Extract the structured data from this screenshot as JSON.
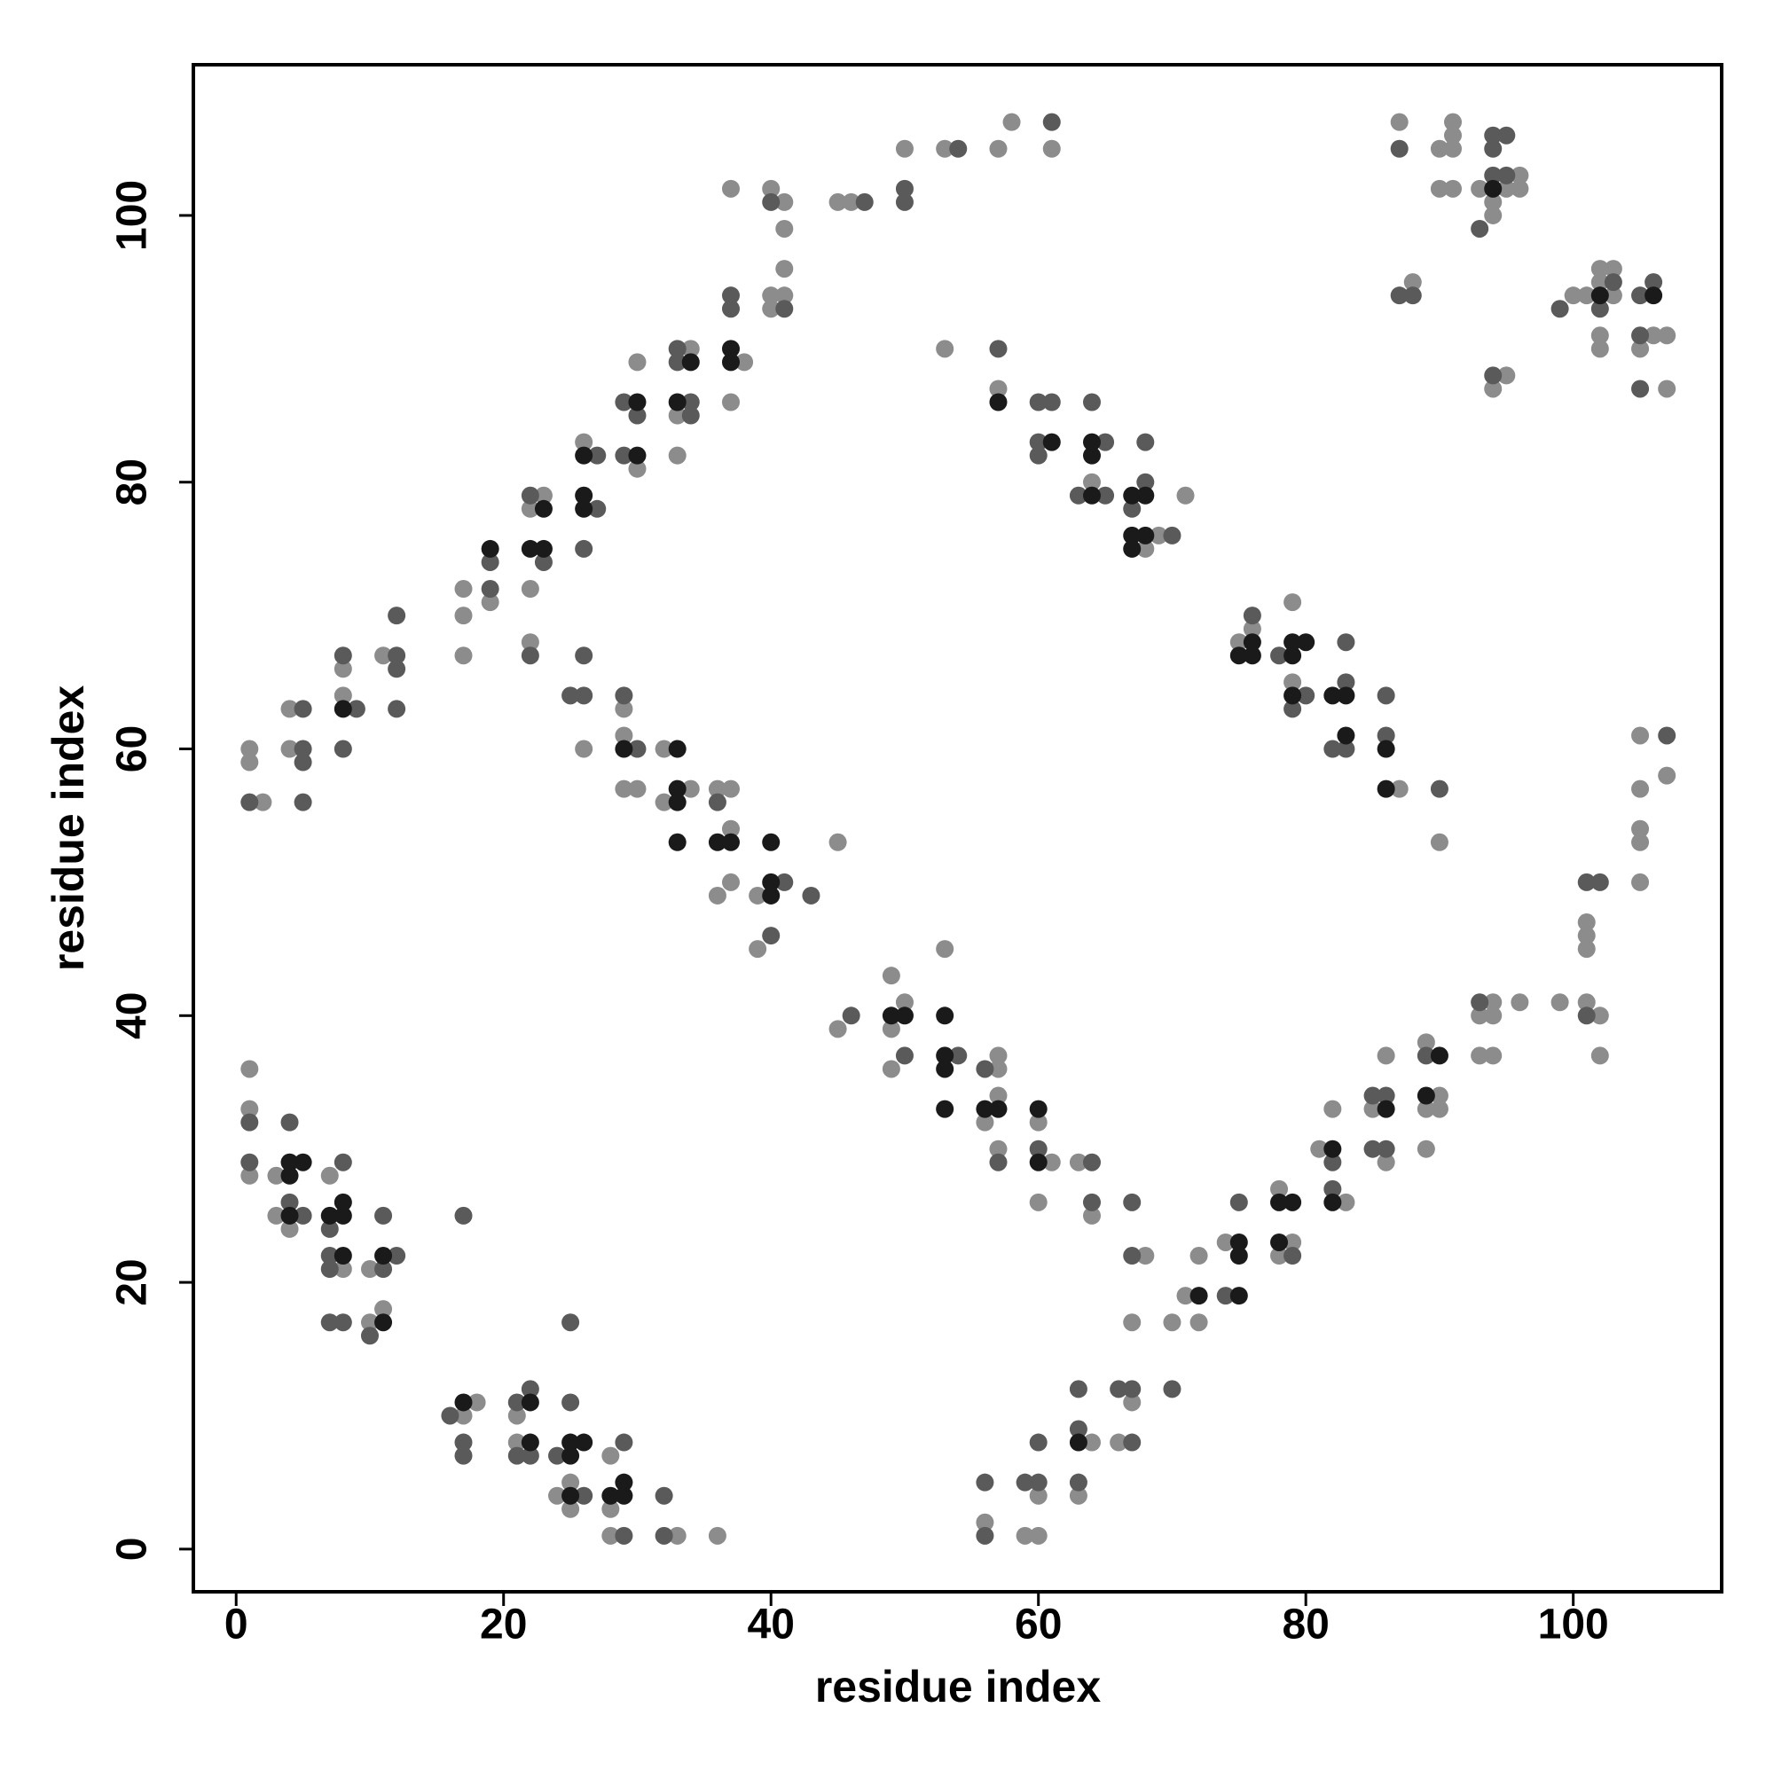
{
  "chart_data": {
    "type": "scatter",
    "xlabel": "residue index",
    "ylabel": "residue index",
    "xlim": [
      -3.2,
      111.1
    ],
    "ylim": [
      -3.2,
      111.3
    ],
    "xticks": [
      0,
      20,
      40,
      60,
      80,
      100
    ],
    "yticks": [
      0,
      20,
      40,
      60,
      80,
      100
    ],
    "grid": false,
    "series": [
      {
        "color": "#8c8c8c",
        "x": [
          1,
          1,
          1,
          3,
          3,
          4,
          7,
          8,
          10,
          10,
          11,
          17,
          18,
          21,
          21,
          25,
          24,
          25,
          28,
          28,
          28,
          33,
          36,
          1,
          1,
          2,
          4,
          4,
          8,
          8,
          11,
          17,
          17,
          17,
          19,
          23,
          22,
          22,
          22,
          26,
          26,
          30,
          30,
          34,
          33,
          33,
          38,
          37,
          37,
          40,
          41,
          41,
          41,
          40,
          41,
          40,
          45,
          46,
          50,
          53,
          57,
          58,
          61,
          53,
          57,
          29,
          29,
          29,
          30,
          32,
          34,
          32,
          36,
          37,
          37,
          37,
          36,
          39,
          39,
          45,
          45,
          49,
          50,
          49,
          49,
          53,
          57,
          57,
          57,
          56,
          57,
          60,
          61,
          60,
          63,
          64,
          68,
          67,
          70,
          71,
          72,
          72,
          74,
          78,
          79,
          78,
          82,
          81,
          83,
          85,
          86,
          86,
          89,
          90,
          89,
          90,
          89,
          94,
          93,
          94,
          93,
          94,
          96,
          99,
          101,
          102,
          102,
          101,
          101,
          101,
          105,
          105,
          105,
          105,
          105,
          107,
          56,
          59,
          60,
          60,
          64,
          63,
          67,
          66,
          64,
          68,
          69,
          71,
          75,
          76,
          79,
          79,
          87,
          90,
          87,
          91,
          91,
          90,
          91,
          90,
          91,
          93,
          96,
          95,
          96,
          94,
          94,
          88,
          95,
          94,
          100,
          101,
          102,
          103,
          102,
          103,
          102,
          102,
          106,
          107,
          105,
          107
        ],
        "values": [
          36,
          33,
          28,
          28,
          25,
          24,
          28,
          21,
          21,
          17,
          18,
          10,
          11,
          10,
          8,
          5,
          4,
          3,
          7,
          3,
          1,
          1,
          1,
          60,
          59,
          56,
          63,
          60,
          66,
          64,
          67,
          72,
          70,
          67,
          71,
          79,
          78,
          72,
          68,
          83,
          60,
          81,
          89,
          90,
          85,
          82,
          89,
          86,
          102,
          102,
          101,
          99,
          96,
          94,
          94,
          93,
          101,
          101,
          105,
          105,
          105,
          107,
          105,
          90,
          87,
          63,
          61,
          57,
          57,
          60,
          57,
          56,
          57,
          57,
          54,
          50,
          49,
          49,
          45,
          53,
          39,
          43,
          41,
          39,
          36,
          45,
          37,
          36,
          34,
          32,
          30,
          32,
          29,
          26,
          29,
          25,
          22,
          17,
          17,
          19,
          22,
          17,
          23,
          27,
          23,
          22,
          33,
          30,
          26,
          33,
          37,
          29,
          38,
          34,
          33,
          33,
          30,
          41,
          40,
          40,
          37,
          37,
          41,
          41,
          41,
          40,
          37,
          47,
          46,
          45,
          57,
          54,
          53,
          50,
          61,
          58,
          2,
          1,
          1,
          4,
          8,
          4,
          11,
          8,
          80,
          75,
          76,
          79,
          68,
          69,
          71,
          65,
          57,
          53,
          107,
          107,
          106,
          105,
          105,
          102,
          102,
          102,
          103,
          102,
          102,
          101,
          100,
          95,
          88,
          87,
          94,
          94,
          96,
          96,
          95,
          94,
          91,
          90,
          91,
          91,
          90,
          87
        ]
      },
      {
        "color": "#5a5a5a",
        "x": [
          1,
          1,
          4,
          4,
          5,
          8,
          7,
          7,
          7,
          11,
          12,
          11,
          7,
          8,
          10,
          17,
          16,
          17,
          17,
          21,
          22,
          21,
          22,
          24,
          25,
          25,
          26,
          29,
          29,
          32,
          32,
          1,
          5,
          5,
          5,
          5,
          8,
          9,
          8,
          12,
          12,
          12,
          12,
          19,
          19,
          22,
          23,
          22,
          27,
          27,
          26,
          26,
          25,
          26,
          29,
          30,
          29,
          33,
          33,
          34,
          34,
          37,
          37,
          40,
          41,
          47,
          50,
          50,
          54,
          61,
          57,
          29,
          30,
          36,
          41,
          40,
          43,
          46,
          50,
          54,
          56,
          57,
          60,
          64,
          64,
          67,
          67,
          75,
          74,
          79,
          82,
          82,
          85,
          86,
          85,
          86,
          89,
          93,
          101,
          101,
          102,
          107,
          56,
          56,
          59,
          60,
          60,
          63,
          63,
          63,
          66,
          67,
          67,
          70,
          60,
          61,
          60,
          60,
          63,
          65,
          65,
          64,
          67,
          68,
          68,
          70,
          76,
          78,
          80,
          79,
          83,
          83,
          82,
          83,
          86,
          86,
          90,
          87,
          94,
          95,
          94,
          94,
          95,
          93,
          87,
          88,
          94,
          99,
          103,
          102,
          105,
          106,
          105,
          105
        ],
        "values": [
          32,
          29,
          32,
          26,
          25,
          29,
          24,
          22,
          21,
          21,
          22,
          25,
          17,
          17,
          16,
          25,
          10,
          8,
          7,
          11,
          12,
          7,
          7,
          7,
          11,
          17,
          4,
          8,
          1,
          4,
          1,
          56,
          63,
          60,
          59,
          56,
          67,
          63,
          60,
          67,
          66,
          70,
          63,
          74,
          72,
          79,
          74,
          67,
          82,
          78,
          75,
          67,
          64,
          64,
          86,
          85,
          82,
          90,
          89,
          86,
          85,
          94,
          93,
          101,
          93,
          101,
          102,
          101,
          105,
          107,
          90,
          64,
          60,
          56,
          50,
          46,
          49,
          40,
          37,
          37,
          36,
          29,
          30,
          29,
          26,
          26,
          22,
          26,
          19,
          22,
          29,
          27,
          34,
          34,
          30,
          30,
          37,
          41,
          40,
          50,
          50,
          61,
          5,
          1,
          5,
          5,
          8,
          12,
          9,
          5,
          12,
          12,
          8,
          12,
          86,
          86,
          83,
          82,
          79,
          79,
          83,
          86,
          78,
          80,
          83,
          76,
          70,
          67,
          64,
          63,
          68,
          65,
          60,
          60,
          64,
          61,
          57,
          105,
          106,
          106,
          105,
          103,
          103,
          99,
          94,
          94,
          88,
          93,
          95,
          93,
          94,
          95,
          91,
          87
        ]
      },
      {
        "color": "#1a1a1a",
        "x": [
          4,
          5,
          4,
          4,
          7,
          8,
          8,
          8,
          11,
          11,
          17,
          22,
          22,
          25,
          26,
          25,
          25,
          29,
          28,
          29,
          8,
          19,
          23,
          22,
          23,
          26,
          26,
          26,
          30,
          30,
          34,
          33,
          37,
          37,
          57,
          29,
          33,
          33,
          33,
          33,
          36,
          37,
          40,
          40,
          40,
          49,
          50,
          53,
          53,
          53,
          53,
          56,
          57,
          60,
          60,
          72,
          75,
          75,
          75,
          78,
          79,
          78,
          82,
          82,
          86,
          90,
          89,
          63,
          61,
          64,
          64,
          64,
          67,
          68,
          67,
          68,
          67,
          75,
          76,
          76,
          79,
          79,
          80,
          79,
          82,
          83,
          83,
          86,
          86,
          94,
          102,
          106
        ],
        "values": [
          29,
          29,
          28,
          25,
          25,
          26,
          25,
          22,
          22,
          17,
          11,
          11,
          8,
          8,
          8,
          7,
          4,
          5,
          4,
          4,
          63,
          75,
          78,
          75,
          75,
          82,
          79,
          78,
          86,
          82,
          89,
          86,
          90,
          89,
          86,
          60,
          60,
          57,
          56,
          53,
          53,
          53,
          53,
          50,
          49,
          40,
          40,
          40,
          37,
          36,
          33,
          33,
          33,
          33,
          29,
          19,
          23,
          22,
          19,
          26,
          26,
          23,
          30,
          26,
          33,
          37,
          34,
          8,
          83,
          79,
          83,
          82,
          79,
          79,
          76,
          76,
          75,
          67,
          67,
          68,
          68,
          67,
          68,
          64,
          64,
          64,
          61,
          60,
          57,
          102,
          94,
          94
        ]
      }
    ]
  }
}
